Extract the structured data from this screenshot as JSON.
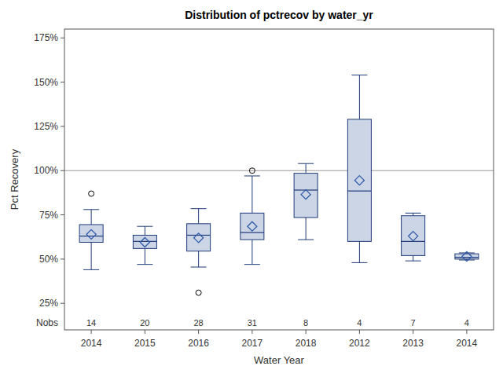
{
  "chart_data": {
    "type": "box",
    "title": "Distribution of pctrecov by water_yr",
    "x_label": "Water Year",
    "y_label": "Pct Recovery",
    "nobs_label": "Nobs",
    "categories": [
      "2014",
      "2015",
      "2016",
      "2017",
      "2018",
      "2012",
      "2013",
      "2014"
    ],
    "boxes": [
      {
        "min": 44,
        "q1": 59.5,
        "median": 63,
        "q3": 69.5,
        "max": 78,
        "mean": 64,
        "outliers": [
          87
        ],
        "n": 14
      },
      {
        "min": 47,
        "q1": 56,
        "median": 60,
        "q3": 63.5,
        "max": 68.5,
        "mean": 59.5,
        "outliers": [],
        "n": 20
      },
      {
        "min": 45.5,
        "q1": 54.5,
        "median": 63.5,
        "q3": 70,
        "max": 78.5,
        "mean": 62,
        "outliers": [
          31
        ],
        "n": 28
      },
      {
        "min": 47,
        "q1": 61,
        "median": 65,
        "q3": 76,
        "max": 97,
        "mean": 68.5,
        "outliers": [
          100
        ],
        "n": 31
      },
      {
        "min": 61,
        "q1": 73.5,
        "median": 89,
        "q3": 98.5,
        "max": 104,
        "mean": 86.5,
        "outliers": [],
        "n": 8
      },
      {
        "min": 48,
        "q1": 60,
        "median": 88.5,
        "q3": 129,
        "max": 154,
        "mean": 94.5,
        "outliers": [],
        "n": 4
      },
      {
        "min": 49,
        "q1": 52,
        "median": 60,
        "q3": 74.5,
        "max": 76,
        "mean": 63,
        "outliers": [],
        "n": 7
      },
      {
        "min": 49.5,
        "q1": 50,
        "median": 51,
        "q3": 53,
        "max": 53.5,
        "mean": 51.5,
        "outliers": [],
        "n": 4
      }
    ],
    "reference_lines": [
      100
    ],
    "color": "#cbd5e6",
    "ylim": [
      10,
      180
    ],
    "yticks": [
      {
        "value": 25,
        "label": "25%"
      },
      {
        "value": 50,
        "label": "50%"
      },
      {
        "value": 75,
        "label": "75%"
      },
      {
        "value": 100,
        "label": "100%"
      },
      {
        "value": 125,
        "label": "125%"
      },
      {
        "value": 150,
        "label": "150%"
      },
      {
        "value": 175,
        "label": "175%"
      }
    ],
    "grid": false
  }
}
